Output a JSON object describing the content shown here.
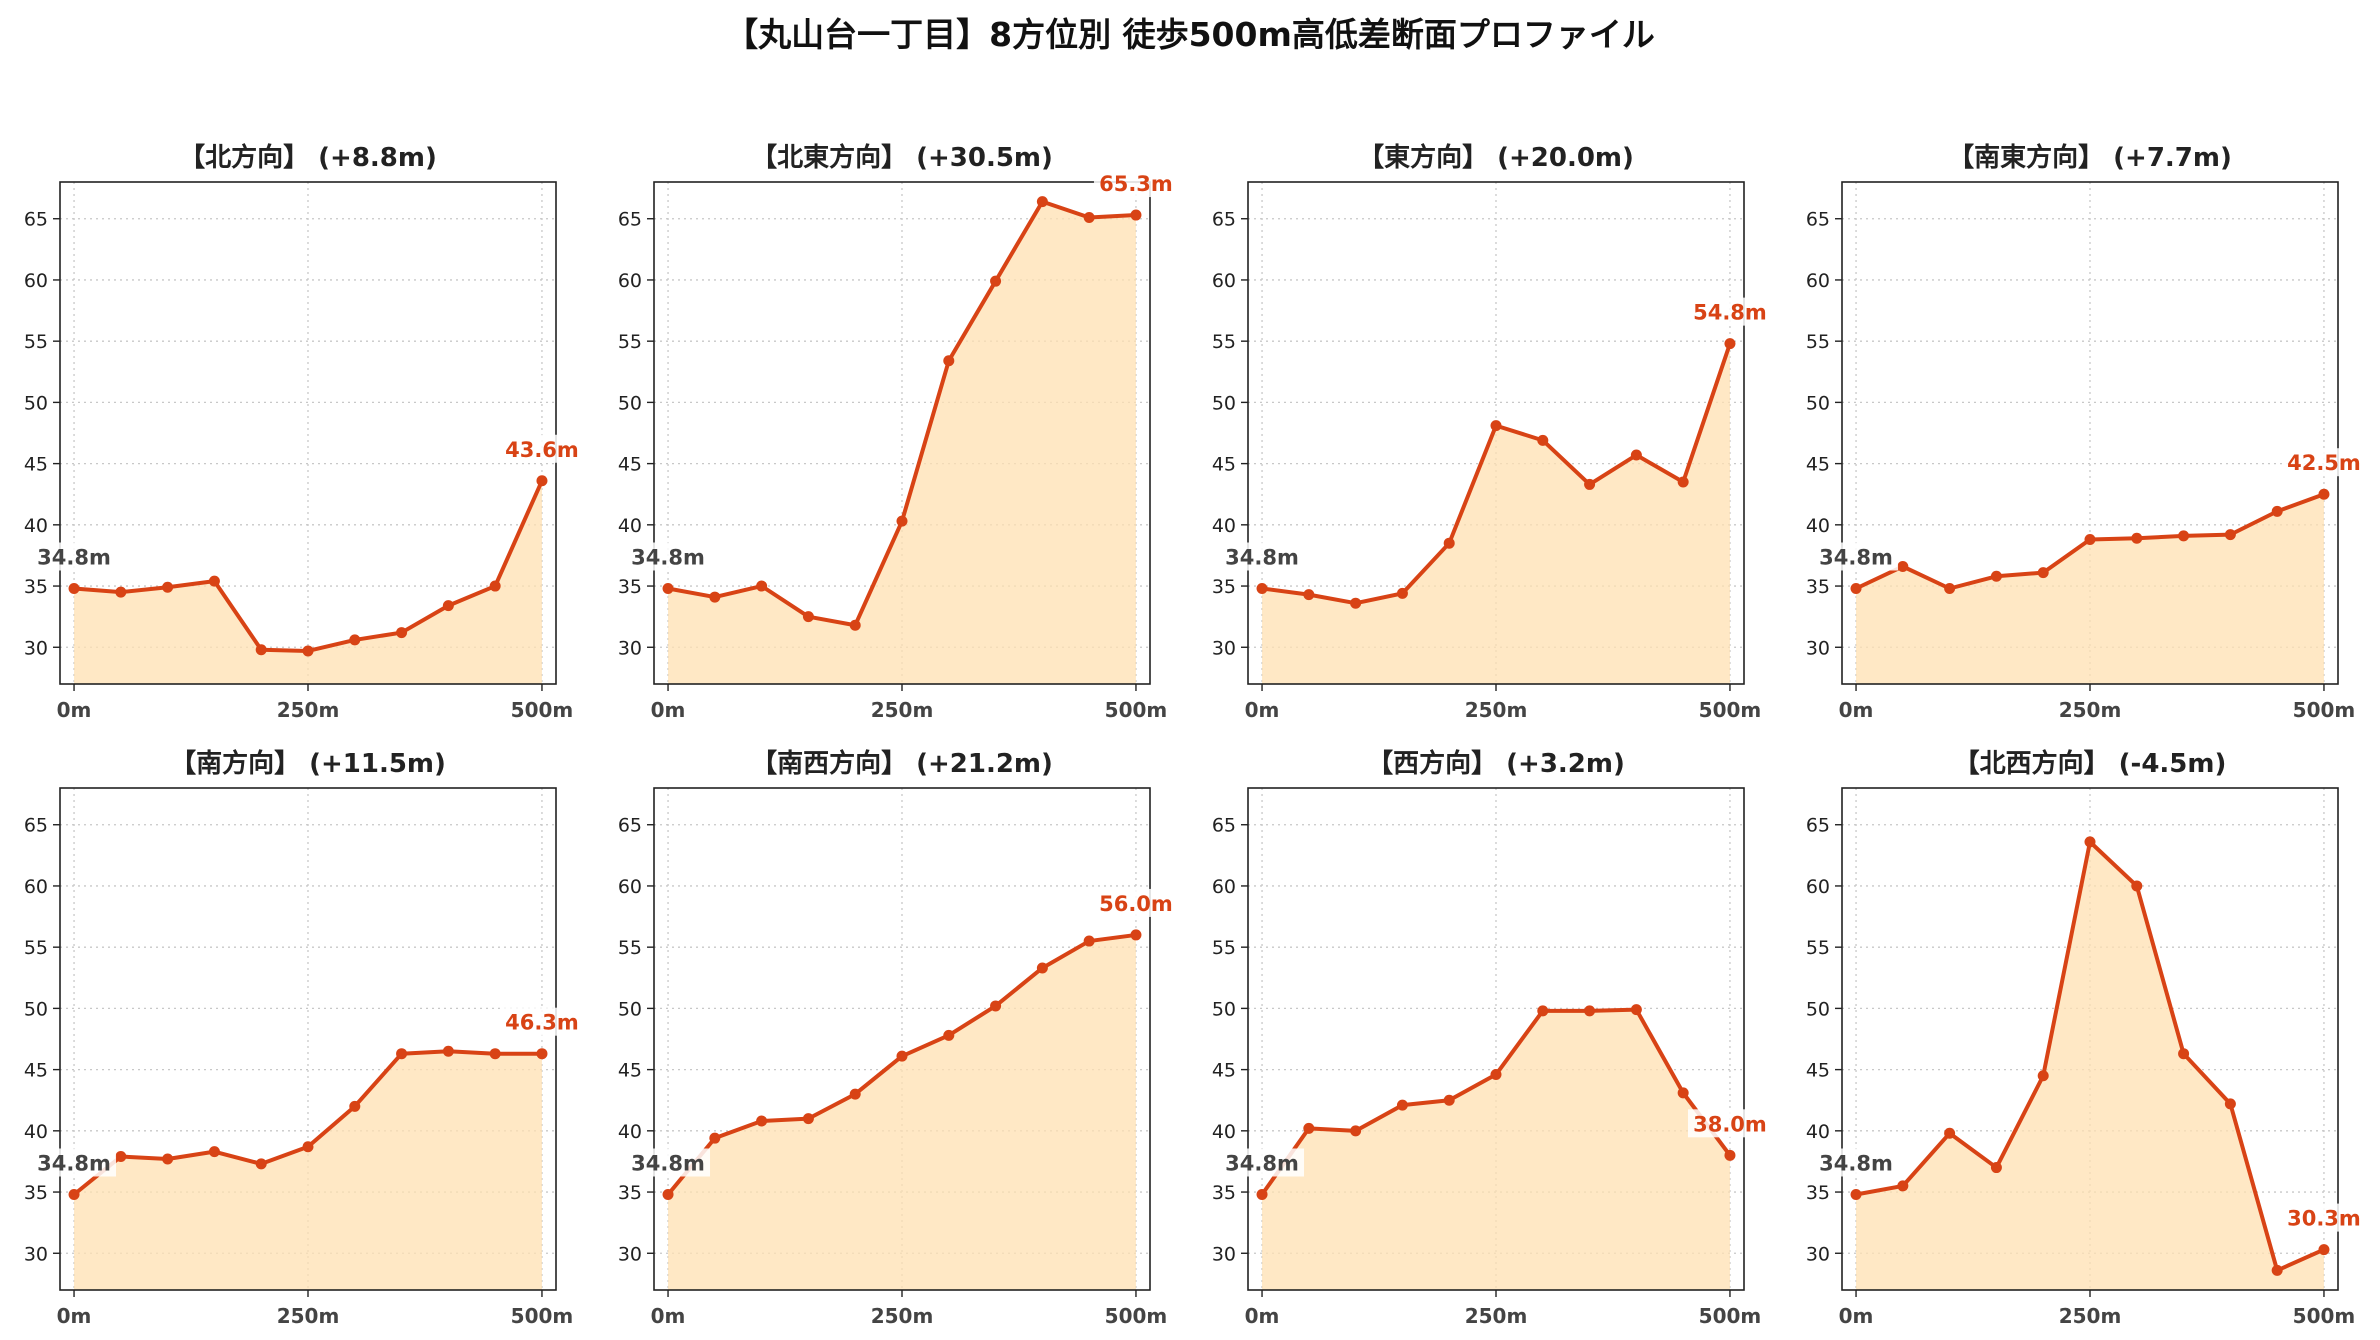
{
  "title": "【丸山台一丁目】8方位別 徒歩500m高低差断面プロファイル",
  "colors": {
    "line": "#d84315",
    "fill": "#ffe0b2",
    "end_label": "#d84315",
    "start_label": "#444444",
    "grid": "#c8c8c8"
  },
  "chart_data": [
    {
      "type": "area",
      "title": "【北方向】 (+8.8m)",
      "x": [
        0,
        50,
        100,
        150,
        200,
        250,
        300,
        350,
        400,
        450,
        500
      ],
      "values": [
        34.8,
        34.5,
        34.9,
        35.4,
        29.8,
        29.7,
        30.6,
        31.2,
        33.4,
        35.0,
        43.6
      ],
      "xticks": [
        "0m",
        "250m",
        "500m"
      ],
      "yticks": [
        30,
        35,
        40,
        45,
        50,
        55,
        60,
        65
      ],
      "ylim": [
        27,
        68
      ],
      "start_label": "34.8m",
      "end_label": "43.6m",
      "grid": true
    },
    {
      "type": "area",
      "title": "【北東方向】 (+30.5m)",
      "x": [
        0,
        50,
        100,
        150,
        200,
        250,
        300,
        350,
        400,
        450,
        500
      ],
      "values": [
        34.8,
        34.1,
        35.0,
        32.5,
        31.8,
        40.3,
        53.4,
        59.9,
        66.4,
        65.1,
        65.3
      ],
      "xticks": [
        "0m",
        "250m",
        "500m"
      ],
      "yticks": [
        30,
        35,
        40,
        45,
        50,
        55,
        60,
        65
      ],
      "ylim": [
        27,
        68
      ],
      "start_label": "34.8m",
      "end_label": "65.3m",
      "grid": true
    },
    {
      "type": "area",
      "title": "【東方向】 (+20.0m)",
      "x": [
        0,
        50,
        100,
        150,
        200,
        250,
        300,
        350,
        400,
        450,
        500
      ],
      "values": [
        34.8,
        34.3,
        33.6,
        34.4,
        38.5,
        48.1,
        46.9,
        43.3,
        45.7,
        43.5,
        54.8
      ],
      "xticks": [
        "0m",
        "250m",
        "500m"
      ],
      "yticks": [
        30,
        35,
        40,
        45,
        50,
        55,
        60,
        65
      ],
      "ylim": [
        27,
        68
      ],
      "start_label": "34.8m",
      "end_label": "54.8m",
      "grid": true
    },
    {
      "type": "area",
      "title": "【南東方向】 (+7.7m)",
      "x": [
        0,
        50,
        100,
        150,
        200,
        250,
        300,
        350,
        400,
        450,
        500
      ],
      "values": [
        34.8,
        36.6,
        34.8,
        35.8,
        36.1,
        38.8,
        38.9,
        39.1,
        39.2,
        41.1,
        42.5
      ],
      "xticks": [
        "0m",
        "250m",
        "500m"
      ],
      "yticks": [
        30,
        35,
        40,
        45,
        50,
        55,
        60,
        65
      ],
      "ylim": [
        27,
        68
      ],
      "start_label": "34.8m",
      "end_label": "42.5m",
      "grid": true
    },
    {
      "type": "area",
      "title": "【南方向】 (+11.5m)",
      "x": [
        0,
        50,
        100,
        150,
        200,
        250,
        300,
        350,
        400,
        450,
        500
      ],
      "values": [
        34.8,
        37.9,
        37.7,
        38.3,
        37.3,
        38.7,
        42.0,
        46.3,
        46.5,
        46.3,
        46.3
      ],
      "xticks": [
        "0m",
        "250m",
        "500m"
      ],
      "yticks": [
        30,
        35,
        40,
        45,
        50,
        55,
        60,
        65
      ],
      "ylim": [
        27,
        68
      ],
      "start_label": "34.8m",
      "end_label": "46.3m",
      "grid": true
    },
    {
      "type": "area",
      "title": "【南西方向】 (+21.2m)",
      "x": [
        0,
        50,
        100,
        150,
        200,
        250,
        300,
        350,
        400,
        450,
        500
      ],
      "values": [
        34.8,
        39.4,
        40.8,
        41.0,
        43.0,
        46.1,
        47.8,
        50.2,
        53.3,
        55.5,
        56.0
      ],
      "xticks": [
        "0m",
        "250m",
        "500m"
      ],
      "yticks": [
        30,
        35,
        40,
        45,
        50,
        55,
        60,
        65
      ],
      "ylim": [
        27,
        68
      ],
      "start_label": "34.8m",
      "end_label": "56.0m",
      "grid": true
    },
    {
      "type": "area",
      "title": "【西方向】 (+3.2m)",
      "x": [
        0,
        50,
        100,
        150,
        200,
        250,
        300,
        350,
        400,
        450,
        500
      ],
      "values": [
        34.8,
        40.2,
        40.0,
        42.1,
        42.5,
        44.6,
        49.8,
        49.8,
        49.9,
        43.1,
        38.0
      ],
      "xticks": [
        "0m",
        "250m",
        "500m"
      ],
      "yticks": [
        30,
        35,
        40,
        45,
        50,
        55,
        60,
        65
      ],
      "ylim": [
        27,
        68
      ],
      "start_label": "34.8m",
      "end_label": "38.0m",
      "grid": true
    },
    {
      "type": "area",
      "title": "【北西方向】 (-4.5m)",
      "x": [
        0,
        50,
        100,
        150,
        200,
        250,
        300,
        350,
        400,
        450,
        500
      ],
      "values": [
        34.8,
        35.5,
        39.8,
        37.0,
        44.5,
        63.6,
        60.0,
        46.3,
        42.2,
        28.6,
        30.3
      ],
      "xticks": [
        "0m",
        "250m",
        "500m"
      ],
      "yticks": [
        30,
        35,
        40,
        45,
        50,
        55,
        60,
        65
      ],
      "ylim": [
        27,
        68
      ],
      "start_label": "34.8m",
      "end_label": "30.3m",
      "grid": true
    }
  ]
}
